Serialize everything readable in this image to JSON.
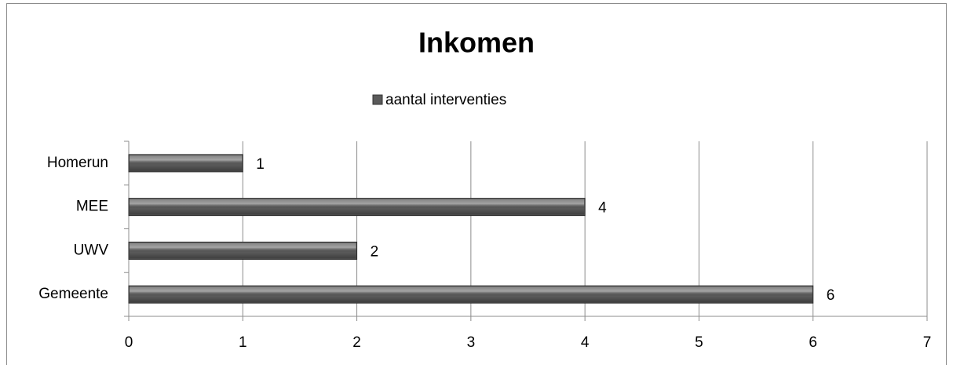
{
  "chart_data": {
    "type": "bar",
    "orientation": "horizontal",
    "title": "Inkomen",
    "categories": [
      "Gemeente",
      "UWV",
      "MEE",
      "Homerun"
    ],
    "series": [
      {
        "name": "aantal interventies",
        "color": "#5a5a5a",
        "values": [
          6,
          2,
          4,
          1
        ]
      }
    ],
    "xlim": [
      0,
      7
    ],
    "xticks": [
      0,
      1,
      2,
      3,
      4,
      5,
      6,
      7
    ],
    "grid": true,
    "legend": "top"
  }
}
